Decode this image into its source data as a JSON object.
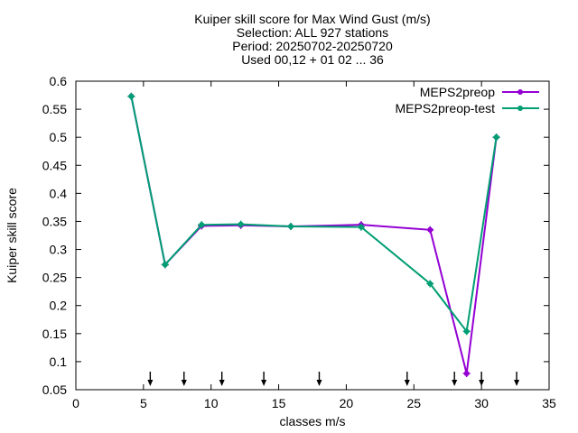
{
  "chart_data": {
    "type": "line",
    "title_lines": [
      "Kuiper skill score  for Max Wind Gust (m/s)",
      "Selection: ALL    927 stations",
      "Period: 20250702-20250720",
      "Used 00,12 + 01 02 ... 36"
    ],
    "xlabel": "classes m/s",
    "ylabel": "Kuiper skill score",
    "xlim": [
      0,
      35
    ],
    "ylim": [
      0.05,
      0.6
    ],
    "xticks": [
      0,
      5,
      10,
      15,
      20,
      25,
      30,
      35
    ],
    "yticks": [
      0.05,
      0.1,
      0.15,
      0.2,
      0.25,
      0.3,
      0.35,
      0.4,
      0.45,
      0.5,
      0.55,
      0.6
    ],
    "grid": false,
    "legend_position": "top-right",
    "series": [
      {
        "name": "MEPS2preop",
        "color": "#9400d3",
        "x": [
          4.1,
          6.6,
          9.3,
          12.2,
          15.9,
          21.1,
          26.2,
          28.9,
          31.1
        ],
        "y": [
          0.573,
          0.273,
          0.342,
          0.343,
          0.341,
          0.344,
          0.335,
          0.079,
          0.5
        ]
      },
      {
        "name": "MEPS2preop-test",
        "color": "#009e73",
        "x": [
          4.1,
          6.6,
          9.3,
          12.2,
          15.9,
          21.1,
          26.2,
          28.9,
          31.1
        ],
        "y": [
          0.573,
          0.273,
          0.344,
          0.345,
          0.341,
          0.34,
          0.239,
          0.154,
          0.5
        ]
      }
    ],
    "threshold_arrows_x": [
      5.5,
      8.0,
      10.8,
      13.9,
      18.0,
      24.5,
      28.0,
      30.0,
      32.6
    ]
  }
}
